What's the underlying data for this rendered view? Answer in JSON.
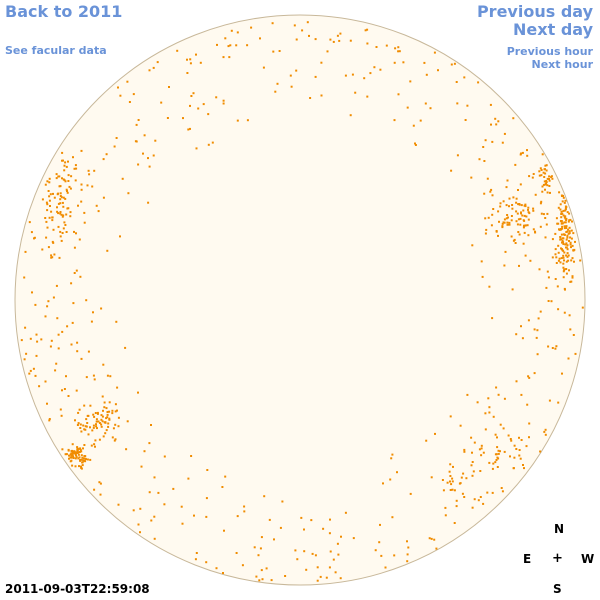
{
  "nav": {
    "back_label": "Back to 2011",
    "facular_label": "See facular data",
    "prev_day_label": "Previous day",
    "next_day_label": "Next day",
    "prev_hour_label": "Previous hour",
    "next_hour_label": "Next hour"
  },
  "compass": {
    "north": "N",
    "south": "S",
    "east": "E",
    "west": "W",
    "center": "+"
  },
  "timestamp": "2011-09-03T22:59:08",
  "colors": {
    "link": "#6a93d8",
    "disk_fill": "#fffaf0",
    "disk_edge": "#c8b89a",
    "spot": "#f08c00"
  },
  "image": {
    "subject": "solar-disk"
  }
}
